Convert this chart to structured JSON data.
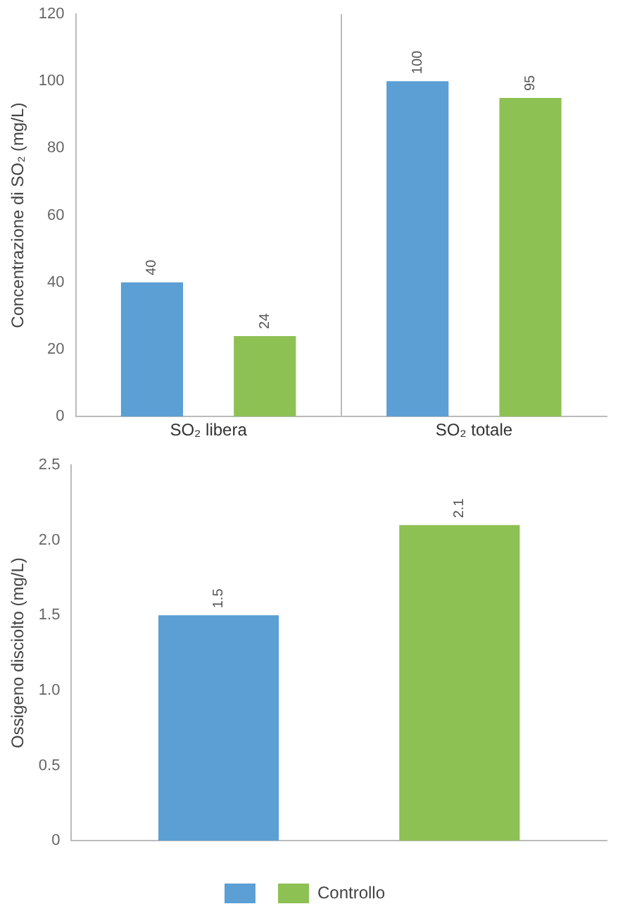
{
  "chart_data": [
    {
      "type": "bar",
      "ylabel": "Concentrazione di SO₂ (mg/L)",
      "categories": [
        "SO₂ libera",
        "SO₂ totale"
      ],
      "series": [
        {
          "color": "#5b9fd4",
          "values": [
            40,
            100
          ]
        },
        {
          "color": "#8dc153",
          "values": [
            24,
            95
          ]
        }
      ],
      "ylim": [
        0,
        120
      ],
      "yticks": [
        0,
        20,
        40,
        60,
        80,
        100,
        120
      ],
      "grid": "x",
      "legend": false,
      "data_labels": true
    },
    {
      "type": "bar",
      "ylabel": "Ossigeno disciolto (mg/L)",
      "categories": [
        null
      ],
      "series": [
        {
          "color": "#5b9fd4",
          "values": [
            1.5
          ]
        },
        {
          "name": "Controllo",
          "color": "#8dc153",
          "values": [
            2.1
          ]
        }
      ],
      "ylim": [
        0,
        2.5
      ],
      "yticks": [
        0,
        {
          "value": 0.5,
          "label": "0.5"
        },
        {
          "value": 1,
          "label": "1.0"
        },
        {
          "value": 1.5,
          "label": "1.5"
        },
        {
          "value": 2,
          "label": "2.0"
        },
        {
          "value": 2.5,
          "label": "2.5"
        }
      ],
      "grid": false,
      "legend": "bottom",
      "data_labels": true
    }
  ]
}
